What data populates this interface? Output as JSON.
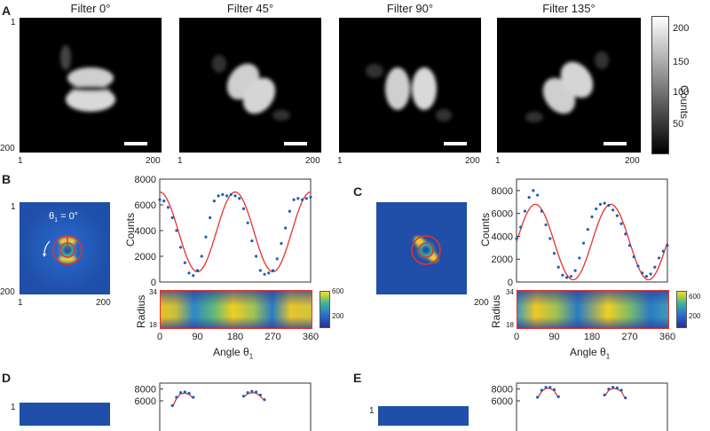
{
  "panels": {
    "A": "A",
    "B": "B",
    "C": "C",
    "D": "D",
    "E": "E"
  },
  "rowA": {
    "titles": [
      "Filter 0°",
      "Filter 45°",
      "Filter 90°",
      "Filter 135°"
    ],
    "axis_min": "1",
    "axis_max": "200",
    "colorbar": {
      "label": "Counts",
      "ticks": [
        "200",
        "150",
        "100",
        "50"
      ]
    }
  },
  "rowB": {
    "theta_label": "θ",
    "theta_sub": "1",
    "theta_eq": " = 0°",
    "img_ticks": {
      "min": "1",
      "max": "200"
    },
    "heat_cbar_ticks": [
      "600",
      "200"
    ],
    "radius_label": "Radius",
    "radius_ticks": [
      "34",
      "18"
    ],
    "counts_label": "Counts",
    "xlabel_main": "Angle  θ",
    "xlabel_sub": "1"
  },
  "chart_data": [
    {
      "panel": "B",
      "type": "scatter",
      "ylabel": "Counts",
      "xlabel": "Angle θ1",
      "xlim": [
        0,
        360
      ],
      "ylim": [
        0,
        8000
      ],
      "xticks": [
        "0",
        "90",
        "180",
        "270",
        "360"
      ],
      "yticks": [
        "0",
        "2000",
        "4000",
        "6000",
        "8000"
      ],
      "series": [
        {
          "x": [
            0,
            10,
            20,
            30,
            40,
            50,
            60,
            70,
            80,
            90,
            100,
            110,
            120,
            130,
            140,
            150,
            160,
            170,
            180,
            190,
            200,
            210,
            220,
            230,
            240,
            250,
            260,
            270,
            280,
            290,
            300,
            310,
            320,
            330,
            340,
            350,
            360
          ],
          "y": [
            6400,
            6300,
            5800,
            5000,
            4000,
            2700,
            1500,
            700,
            500,
            900,
            2000,
            3500,
            5000,
            6300,
            6700,
            6800,
            6700,
            6800,
            6700,
            6500,
            5700,
            4600,
            3200,
            2000,
            900,
            600,
            700,
            900,
            1800,
            3000,
            4200,
            5500,
            6400,
            6500,
            6400,
            6500,
            6600
          ]
        }
      ],
      "fit": {
        "amplitude": 3100,
        "offset": 3900,
        "phase_deg": 0,
        "period_deg": 180
      }
    },
    {
      "panel": "C",
      "type": "scatter",
      "ylabel": "Counts",
      "xlabel": "Angle θ1",
      "xlim": [
        0,
        360
      ],
      "ylim": [
        0,
        9000
      ],
      "xticks": [
        "0",
        "90",
        "180",
        "270",
        "360"
      ],
      "yticks": [
        "0",
        "2000",
        "4000",
        "6000",
        "8000"
      ],
      "series": [
        {
          "x": [
            0,
            10,
            20,
            30,
            40,
            50,
            60,
            70,
            80,
            90,
            100,
            110,
            120,
            130,
            140,
            150,
            160,
            170,
            180,
            190,
            200,
            210,
            220,
            230,
            240,
            250,
            260,
            270,
            280,
            290,
            300,
            310,
            320,
            330,
            340,
            350,
            360
          ],
          "y": [
            3800,
            4800,
            6200,
            7400,
            8000,
            7600,
            6200,
            5000,
            3800,
            2500,
            1300,
            600,
            400,
            500,
            1000,
            2100,
            3400,
            4600,
            5700,
            6400,
            6800,
            6900,
            6700,
            6300,
            5800,
            5100,
            4200,
            3200,
            2200,
            1400,
            800,
            500,
            700,
            1300,
            2100,
            2700,
            3200
          ]
        }
      ],
      "fit": {
        "amplitude": 3300,
        "offset": 3500,
        "phase_deg": 45,
        "period_deg": 180
      }
    },
    {
      "panel": "D",
      "type": "scatter",
      "xlim": [
        0,
        360
      ],
      "ylim": [
        0,
        9000
      ],
      "yticks": [
        "8000",
        "6000"
      ],
      "series": [
        {
          "x": [
            30,
            40,
            50,
            60,
            70,
            80,
            200,
            210,
            220,
            230,
            240,
            250
          ],
          "y": [
            5200,
            6600,
            7400,
            7500,
            7300,
            6600,
            6800,
            7400,
            7600,
            7500,
            7000,
            6200
          ]
        }
      ]
    },
    {
      "panel": "E",
      "type": "scatter",
      "xlim": [
        0,
        360
      ],
      "ylim": [
        0,
        9000
      ],
      "yticks": [
        "8000",
        "6000"
      ],
      "series": [
        {
          "x": [
            50,
            60,
            70,
            80,
            90,
            100,
            210,
            220,
            230,
            240,
            250,
            260
          ],
          "y": [
            6600,
            7800,
            8300,
            8300,
            7900,
            6700,
            7000,
            8000,
            8300,
            8200,
            7800,
            6500
          ]
        }
      ]
    }
  ]
}
